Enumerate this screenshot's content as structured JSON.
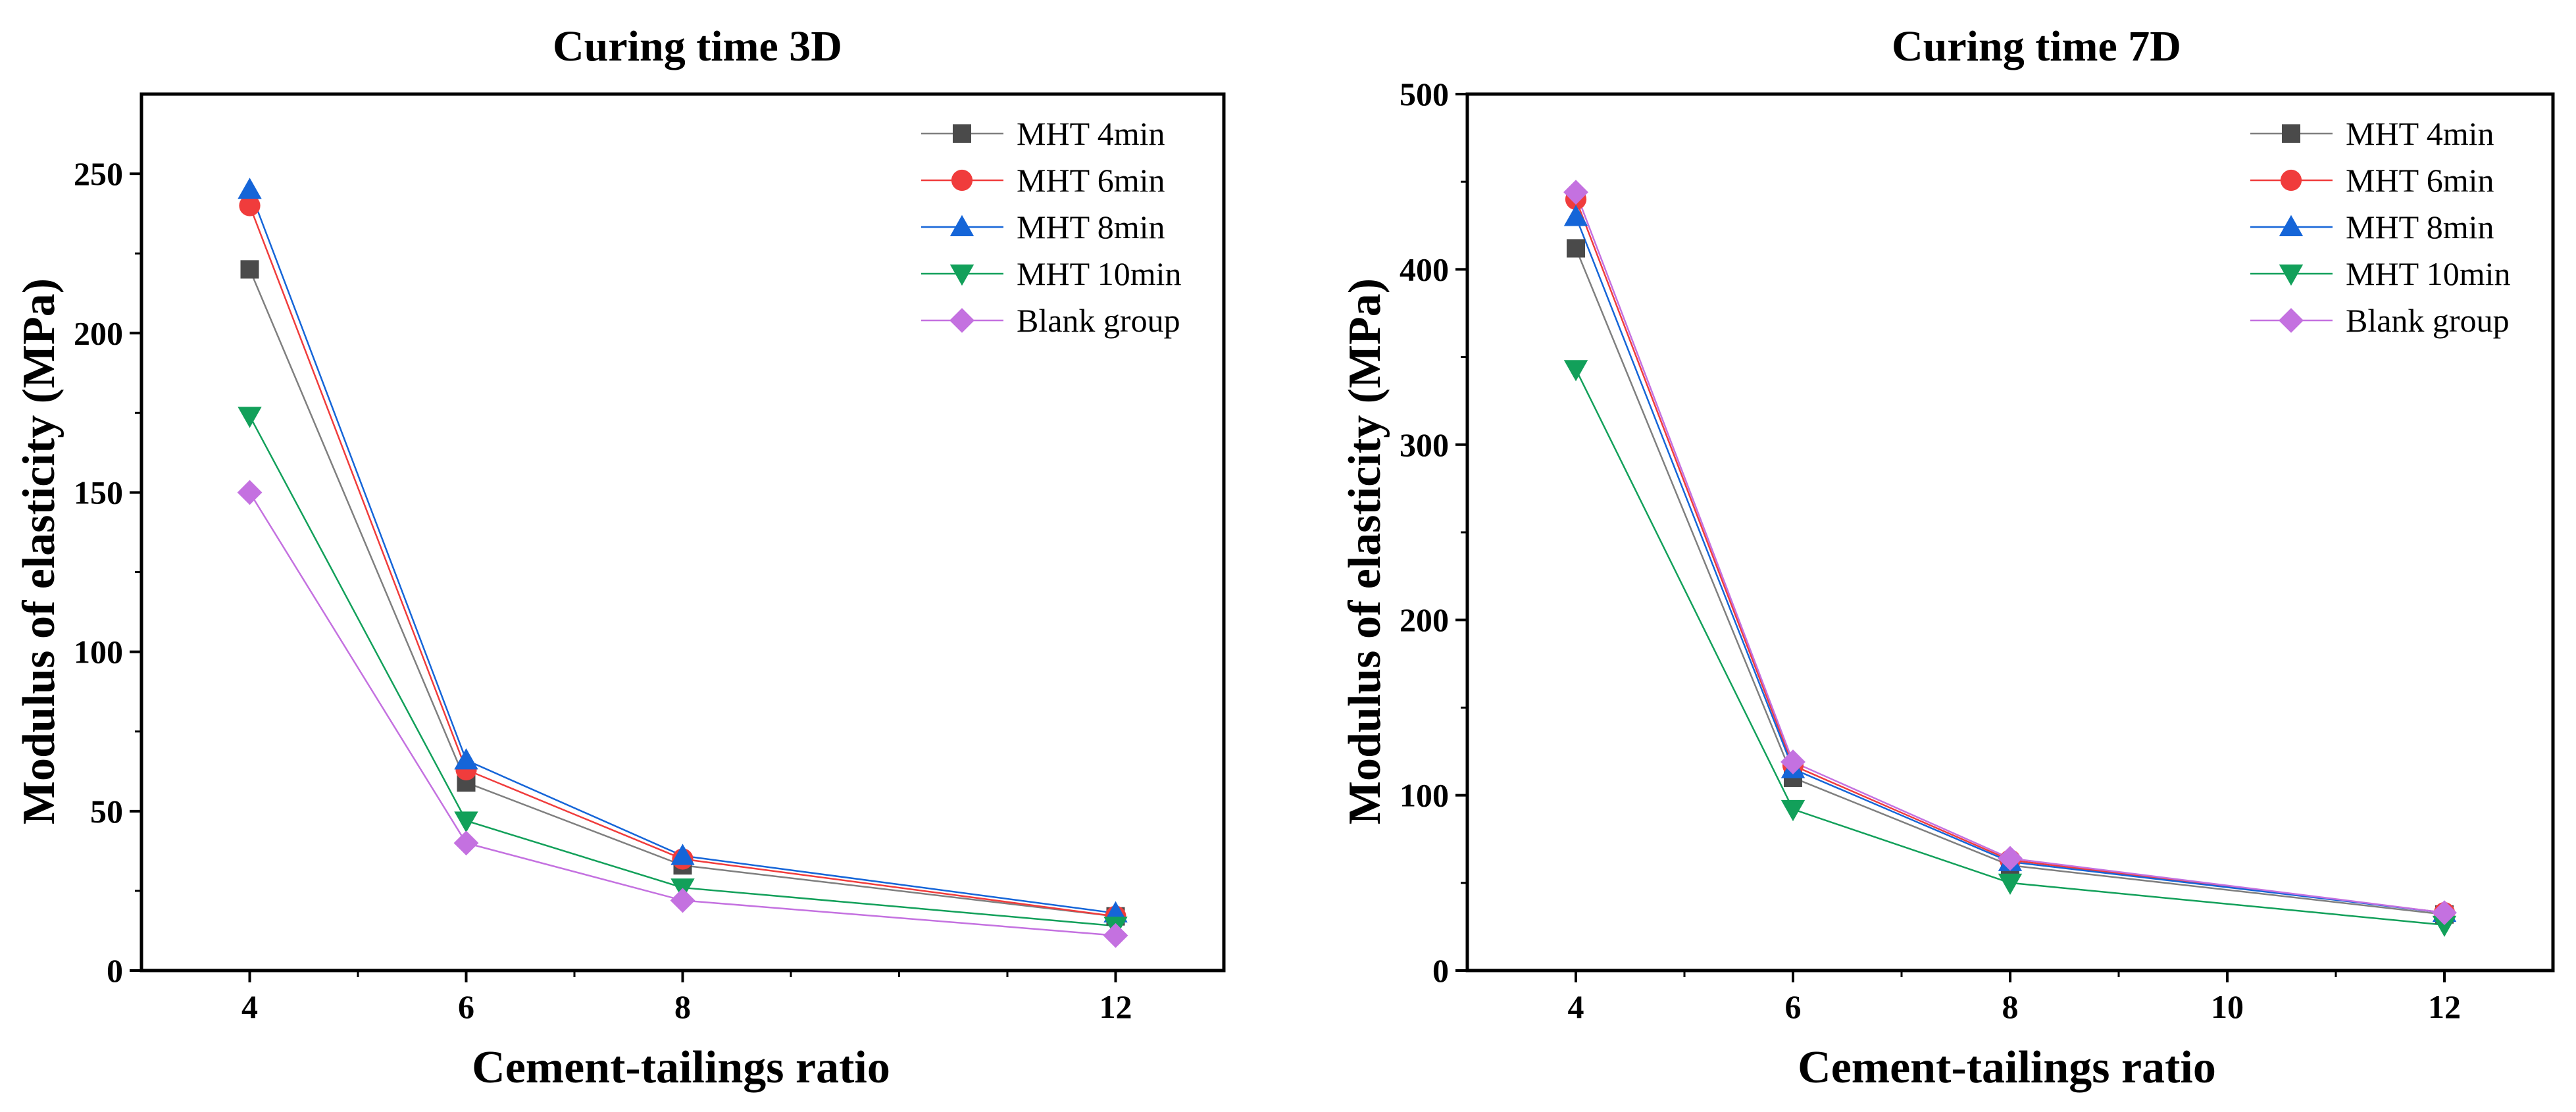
{
  "chart_data": [
    {
      "type": "line",
      "title": "Curing time 3D",
      "xlabel": "Cement-tailings ratio",
      "ylabel": "Modulus of elasticity (MPa)",
      "x": [
        4,
        6,
        8,
        12
      ],
      "xticks": [
        4,
        6,
        8,
        12
      ],
      "xlim": [
        3,
        13
      ],
      "ylim": [
        0,
        275
      ],
      "yticks": [
        0,
        50,
        100,
        150,
        200,
        250
      ],
      "legend_position": "top-right",
      "series": [
        {
          "name": "MHT 4min",
          "marker": "square",
          "color": "#4a4a4a",
          "line_color": "#7f7f7f",
          "values": [
            220,
            59,
            33,
            17
          ]
        },
        {
          "name": "MHT 6min",
          "marker": "circle",
          "color": "#f03c3c",
          "line_color": "#f03c3c",
          "values": [
            240,
            63,
            35,
            17
          ]
        },
        {
          "name": "MHT 8min",
          "marker": "triangle-up",
          "color": "#1565d8",
          "line_color": "#1565d8",
          "values": [
            245,
            66,
            36,
            18
          ]
        },
        {
          "name": "MHT 10min",
          "marker": "triangle-down",
          "color": "#12a05a",
          "line_color": "#12a05a",
          "values": [
            174,
            47,
            26,
            14
          ]
        },
        {
          "name": "Blank group",
          "marker": "diamond",
          "color": "#c471e0",
          "line_color": "#c471e0",
          "values": [
            150,
            40,
            22,
            11
          ]
        }
      ]
    },
    {
      "type": "line",
      "title": "Curing time 7D",
      "xlabel": "Cement-tailings ratio",
      "ylabel": "Modulus of elasticity (MPa)",
      "x": [
        4,
        6,
        8,
        12
      ],
      "xticks": [
        4,
        6,
        8,
        10,
        12
      ],
      "xlim": [
        3,
        13
      ],
      "ylim": [
        0,
        500
      ],
      "yticks": [
        0,
        100,
        200,
        300,
        400,
        500
      ],
      "legend_position": "top-right",
      "series": [
        {
          "name": "MHT 4min",
          "marker": "square",
          "color": "#4a4a4a",
          "line_color": "#7f7f7f",
          "values": [
            412,
            110,
            60,
            32
          ]
        },
        {
          "name": "MHT 6min",
          "marker": "circle",
          "color": "#f03c3c",
          "line_color": "#f03c3c",
          "values": [
            440,
            117,
            63,
            33
          ]
        },
        {
          "name": "MHT 8min",
          "marker": "triangle-up",
          "color": "#1565d8",
          "line_color": "#1565d8",
          "values": [
            430,
            115,
            62,
            33
          ]
        },
        {
          "name": "MHT 10min",
          "marker": "triangle-down",
          "color": "#12a05a",
          "line_color": "#12a05a",
          "values": [
            343,
            92,
            50,
            26
          ]
        },
        {
          "name": "Blank group",
          "marker": "diamond",
          "color": "#c471e0",
          "line_color": "#c471e0",
          "values": [
            444,
            119,
            64,
            33
          ]
        }
      ]
    }
  ]
}
